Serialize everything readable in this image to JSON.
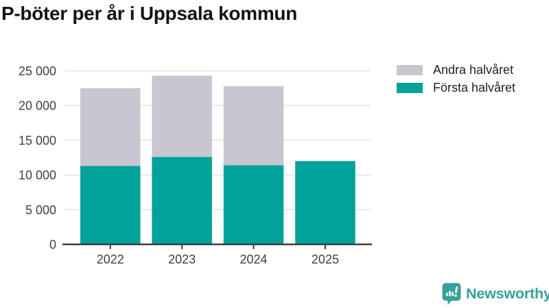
{
  "title": "P-böter per år i Uppsala kommun",
  "legend": {
    "items": [
      {
        "label": "Andra halvåret",
        "color": "#c9c6d0"
      },
      {
        "label": "Första halvåret",
        "color": "#00a29a"
      }
    ]
  },
  "chart_data": {
    "type": "bar",
    "stacked": true,
    "title": "P-böter per år i Uppsala kommun",
    "categories": [
      "2022",
      "2023",
      "2024",
      "2025"
    ],
    "series": [
      {
        "name": "Första halvåret",
        "color": "#00a29a",
        "values": [
          11300,
          12600,
          11400,
          12000
        ]
      },
      {
        "name": "Andra halvåret",
        "color": "#c9c6d0",
        "values": [
          11200,
          11700,
          11400,
          0
        ]
      }
    ],
    "totals": [
      22500,
      24300,
      22800,
      12000
    ],
    "xlabel": "",
    "ylabel": "",
    "ylim": [
      0,
      25000
    ],
    "ytick_interval": 5000,
    "ytick_labels": [
      "0",
      "5 000",
      "10 000",
      "15 000",
      "20 000",
      "25 000"
    ],
    "grid": true,
    "legend_position": "top-right",
    "colors": {
      "grid": "#e8e7eb",
      "axis": "#3b3b40",
      "tick_label": "#3f3f3f"
    }
  },
  "footer": {
    "brand": "Newsworthy",
    "brand_color": "#38a099",
    "logo_icon": "newsworthy-speech-bubble-bar-chart-icon"
  }
}
